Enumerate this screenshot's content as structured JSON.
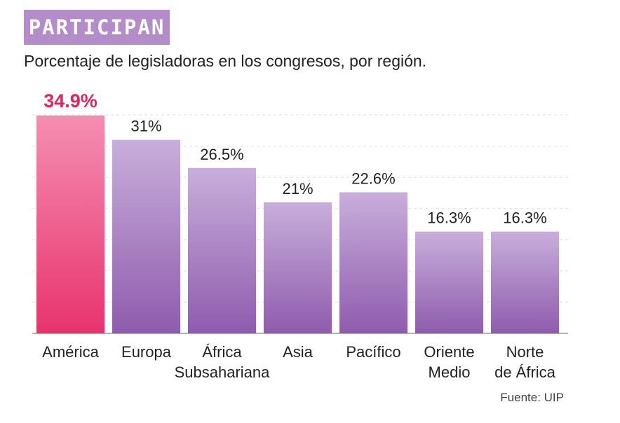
{
  "header": {
    "tag": "PARTICIPAN"
  },
  "chart_data": {
    "type": "bar",
    "title": "",
    "subtitle": "Porcentaje de legisladoras en los congresos, por región.",
    "source": "Fuente: UIP",
    "categories": [
      [
        "América"
      ],
      [
        "Europa"
      ],
      [
        "África",
        "Subsahariana"
      ],
      [
        "Asia"
      ],
      [
        "Pacífico"
      ],
      [
        "Oriente",
        "Medio"
      ],
      [
        "Norte",
        "de África"
      ]
    ],
    "values": [
      34.9,
      31,
      26.5,
      21,
      22.6,
      16.3,
      16.3
    ],
    "value_labels": [
      "34.9%",
      "31%",
      "26.5%",
      "21%",
      "22.6%",
      "16.3%",
      "16.3%"
    ],
    "highlight_index": 0,
    "ylim": [
      0,
      35
    ],
    "grid": true,
    "colors": {
      "highlight_top": "#f48fb1",
      "highlight_bottom": "#e8336e",
      "highlight_label": "#e0245e",
      "bar_top": "#c9aedb",
      "bar_bottom": "#8e5cad",
      "label": "#222222",
      "grid": "#dddddd",
      "baseline": "#999999"
    }
  }
}
